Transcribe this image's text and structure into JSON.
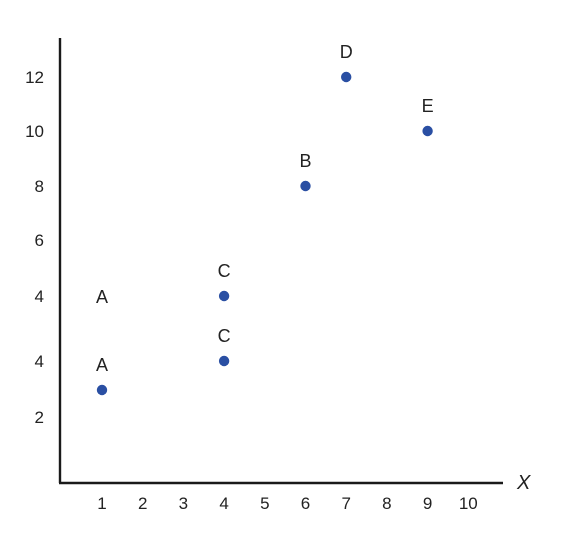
{
  "chart_data": {
    "type": "scatter",
    "title": "",
    "xlabel": "X",
    "ylabel": "",
    "grid": false,
    "xlim": [
      0,
      11
    ],
    "x_ticks": [
      {
        "value": 1,
        "label": "1"
      },
      {
        "value": 2,
        "label": "2"
      },
      {
        "value": 3,
        "label": "3"
      },
      {
        "value": 4,
        "label": "4"
      },
      {
        "value": 5,
        "label": "5"
      },
      {
        "value": 6,
        "label": "6"
      },
      {
        "value": 7,
        "label": "7"
      },
      {
        "value": 8,
        "label": "8"
      },
      {
        "value": 9,
        "label": "9"
      },
      {
        "value": 10,
        "label": "10"
      }
    ],
    "y_ticks": [
      "12",
      "10",
      "8",
      "6",
      "4",
      "4",
      "2"
    ],
    "points": [
      {
        "label": "A",
        "x": 1,
        "y": 3
      },
      {
        "label": "C",
        "x": 4,
        "y": 4
      },
      {
        "label": "C",
        "x": 4,
        "y": 5
      },
      {
        "label": "B",
        "x": 6,
        "y": 8
      },
      {
        "label": "D",
        "x": 7,
        "y": 12
      },
      {
        "label": "E",
        "x": 9,
        "y": 10
      }
    ],
    "extra_labels": [
      {
        "text": "A",
        "x": 1,
        "y": 5
      }
    ],
    "point_color": "#2a4fa3"
  }
}
